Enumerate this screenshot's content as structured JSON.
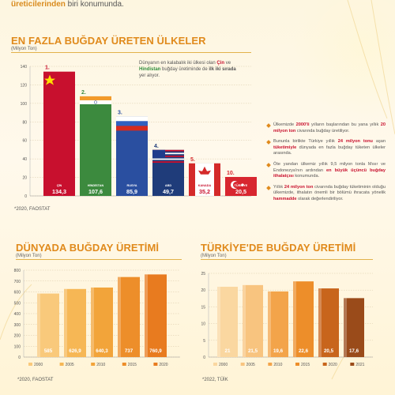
{
  "header": {
    "highlight": "üreticilerinden",
    "rest": " biri konumunda."
  },
  "colors": {
    "accent": "#e08a1c",
    "china": "#c8102e",
    "india": "#3c8a3e",
    "russia": "#2a4fa0",
    "usa": "#1f3c7a",
    "canada": "#d42a2a",
    "turkey": "#d8262f"
  },
  "top_chart": {
    "title": "EN FAZLA BUĞDAY ÜRETEN ÜLKELER",
    "unit": "(Milyon Ton)",
    "source": "*2020, FAOSTAT",
    "note": {
      "p1": "Dünyanın en kalabalık iki ülkesi olan ",
      "china": "Çin",
      "p2": " ve ",
      "india": "Hindistan",
      "p3": " buğday üretiminde de ",
      "strong": "ilk iki sırada",
      "p4": " yer alıyor."
    }
  },
  "bullets": [
    {
      "a": "Ülkemizde ",
      "b": "2000'li",
      "c": " yılların başlarından bu yana yıllık ",
      "d": "20 milyon ton",
      "e": " civarında buğday üretiliyor."
    },
    {
      "a": "Bununla birlikte Türkiye yıllık ",
      "b": "24 milyon tonu",
      "c": " aşan ",
      "d": "tüketimiyle",
      "e": " dünyada en fazla buğday tüketen ülkeler arasında."
    },
    {
      "a": "Öte yandan ülkemiz yıllık 9,5 milyon tonla Mısır ve Endonezya'nın ardından ",
      "b": "en büyük üçüncü buğday ithalatçısı",
      "c": " konumunda.",
      "d": "",
      "e": ""
    },
    {
      "a": "Yıllık ",
      "b": "24 milyon ton",
      "c": " civarında buğday tüketiminin olduğu ülkemizde, ithalatın önemli bir bölümü ihracata yönelik ",
      "d": "hammadde",
      "e": " olarak değerlendiriliyor."
    }
  ],
  "world_chart": {
    "title": "DÜNYADA BUĞDAY ÜRETİMİ",
    "unit": "(Milyon Ton)",
    "source": "*2020, FAOSTAT"
  },
  "turkey_chart": {
    "title": "TÜRKİYE'DE BUĞDAY ÜRETİMİ",
    "unit": "(Milyon Ton)",
    "source": "*2022, TÜİK"
  },
  "chart_data": [
    {
      "type": "bar",
      "categories": [
        "ÇİN",
        "HİNDİSTAN",
        "RUSYA",
        "ABD",
        "KANADA",
        "TÜRKİYE"
      ],
      "ranks": [
        "1.",
        "2.",
        "3.",
        "4.",
        "5.",
        "10."
      ],
      "values": [
        134.3,
        107.6,
        85.9,
        49.7,
        35.2,
        20.5
      ],
      "value_labels": [
        "134,3",
        "107,6",
        "85,9",
        "49,7",
        "35,2",
        "20,5"
      ],
      "yticks": [
        "0",
        "20",
        "40",
        "60",
        "80",
        "100",
        "120",
        "140"
      ],
      "ylim": [
        0,
        140
      ],
      "grid": true
    },
    {
      "type": "bar",
      "categories": [
        "2000",
        "2005",
        "2010",
        "2015",
        "2020"
      ],
      "values": [
        585,
        626.9,
        640.3,
        737,
        760.9
      ],
      "value_labels": [
        "585",
        "626,9",
        "640,3",
        "737",
        "760,9"
      ],
      "yticks": [
        "0",
        "100",
        "200",
        "300",
        "400",
        "500",
        "600",
        "700",
        "800"
      ],
      "ylim": [
        0,
        800
      ],
      "colors": [
        "#f9c97b",
        "#f6b755",
        "#f2a43a",
        "#ed8e2a",
        "#e87b1f"
      ],
      "grid": true
    },
    {
      "type": "bar",
      "categories": [
        "2000",
        "2005",
        "2010",
        "2015",
        "2020",
        "2021"
      ],
      "values": [
        21,
        21.5,
        19.6,
        22.6,
        20.5,
        17.6
      ],
      "value_labels": [
        "21",
        "21,5",
        "19,6",
        "22,6",
        "20,5",
        "17,6"
      ],
      "yticks": [
        "0",
        "5",
        "10",
        "15",
        "20",
        "25"
      ],
      "ylim": [
        0,
        25
      ],
      "colors": [
        "#fad7a0",
        "#f8c47f",
        "#f3a44a",
        "#ed8e2a",
        "#c8651c",
        "#9a4b1a"
      ],
      "grid": true
    }
  ]
}
